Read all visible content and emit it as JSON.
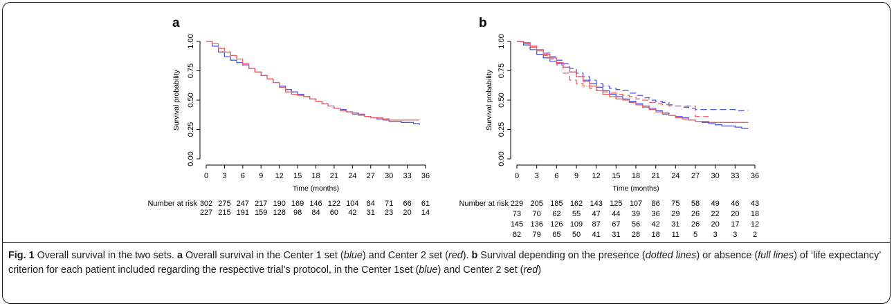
{
  "chart_data": [
    {
      "type": "line",
      "panel": "a",
      "xlabel": "Time (months)",
      "ylabel": "Survival probability",
      "xlim": [
        0,
        36
      ],
      "ylim": [
        0,
        1
      ],
      "x_ticks": [
        "0",
        "3",
        "6",
        "9",
        "12",
        "15",
        "18",
        "21",
        "24",
        "27",
        "30",
        "33",
        "36"
      ],
      "y_ticks": [
        "0.00",
        "0.25",
        "0.50",
        "0.75",
        "1.00"
      ],
      "series": [
        {
          "color": "#4b55e8",
          "style": "solid",
          "x": [
            0,
            1,
            2,
            3,
            4,
            5,
            6,
            7,
            8,
            9,
            10,
            11,
            12,
            13,
            14,
            15,
            16,
            17,
            18,
            19,
            20,
            21,
            22,
            23,
            24,
            25,
            26,
            27,
            28,
            29,
            30,
            31,
            32,
            33,
            34,
            35
          ],
          "y": [
            1.0,
            0.96,
            0.91,
            0.87,
            0.84,
            0.82,
            0.8,
            0.77,
            0.74,
            0.71,
            0.68,
            0.65,
            0.62,
            0.59,
            0.57,
            0.55,
            0.53,
            0.51,
            0.49,
            0.47,
            0.45,
            0.43,
            0.42,
            0.4,
            0.39,
            0.38,
            0.36,
            0.35,
            0.34,
            0.33,
            0.32,
            0.32,
            0.31,
            0.31,
            0.3,
            0.29
          ]
        },
        {
          "color": "#f25b5b",
          "style": "solid",
          "x": [
            0,
            1,
            2,
            3,
            4,
            5,
            6,
            7,
            8,
            9,
            10,
            11,
            12,
            13,
            14,
            15,
            16,
            17,
            18,
            19,
            20,
            21,
            22,
            23,
            24,
            25,
            26,
            27,
            28,
            29,
            30,
            31,
            32,
            33,
            34,
            35
          ],
          "y": [
            1.0,
            0.98,
            0.94,
            0.91,
            0.88,
            0.85,
            0.81,
            0.77,
            0.74,
            0.71,
            0.68,
            0.65,
            0.61,
            0.57,
            0.55,
            0.54,
            0.53,
            0.51,
            0.49,
            0.47,
            0.45,
            0.43,
            0.41,
            0.4,
            0.38,
            0.37,
            0.36,
            0.35,
            0.35,
            0.34,
            0.33,
            0.33,
            0.33,
            0.33,
            0.33,
            0.33
          ]
        }
      ],
      "at_risk_label": "Number at risk",
      "at_risk": [
        [
          "302",
          "275",
          "247",
          "217",
          "190",
          "169",
          "146",
          "122",
          "104",
          "84",
          "71",
          "66",
          "61"
        ],
        [
          "227",
          "215",
          "191",
          "159",
          "128",
          "98",
          "84",
          "60",
          "42",
          "31",
          "23",
          "20",
          "14"
        ]
      ]
    },
    {
      "type": "line",
      "panel": "b",
      "xlabel": "Time (months)",
      "ylabel": "Survival probability",
      "xlim": [
        0,
        36
      ],
      "ylim": [
        0,
        1
      ],
      "x_ticks": [
        "0",
        "3",
        "6",
        "9",
        "12",
        "15",
        "18",
        "21",
        "24",
        "27",
        "30",
        "33",
        "36"
      ],
      "y_ticks": [
        "0.00",
        "0.25",
        "0.50",
        "0.75",
        "1.00"
      ],
      "series": [
        {
          "color": "#4b55e8",
          "style": "solid",
          "x": [
            0,
            1,
            2,
            3,
            4,
            5,
            6,
            7,
            8,
            9,
            10,
            11,
            12,
            13,
            14,
            15,
            16,
            17,
            18,
            19,
            20,
            21,
            22,
            23,
            24,
            25,
            26,
            27,
            28,
            29,
            30,
            31,
            32,
            33,
            34,
            35
          ],
          "y": [
            1.0,
            0.97,
            0.93,
            0.89,
            0.86,
            0.83,
            0.81,
            0.78,
            0.74,
            0.7,
            0.67,
            0.64,
            0.61,
            0.58,
            0.55,
            0.53,
            0.51,
            0.49,
            0.47,
            0.45,
            0.43,
            0.41,
            0.39,
            0.37,
            0.36,
            0.35,
            0.33,
            0.32,
            0.31,
            0.3,
            0.29,
            0.28,
            0.28,
            0.27,
            0.26,
            0.26
          ]
        },
        {
          "color": "#4b55e8",
          "style": "dashed",
          "x": [
            0,
            1,
            2,
            3,
            4,
            5,
            6,
            7,
            8,
            9,
            10,
            11,
            12,
            13,
            14,
            15,
            16,
            17,
            18,
            19,
            20,
            21,
            22,
            23,
            24,
            25,
            26,
            27,
            28,
            29,
            30,
            31,
            32,
            33,
            34,
            35
          ],
          "y": [
            1.0,
            0.98,
            0.96,
            0.93,
            0.9,
            0.87,
            0.84,
            0.81,
            0.77,
            0.73,
            0.7,
            0.67,
            0.64,
            0.62,
            0.6,
            0.59,
            0.58,
            0.56,
            0.54,
            0.52,
            0.5,
            0.49,
            0.48,
            0.46,
            0.45,
            0.44,
            0.43,
            0.42,
            0.42,
            0.42,
            0.42,
            0.42,
            0.42,
            0.41,
            0.41,
            0.41
          ]
        },
        {
          "color": "#f25b5b",
          "style": "solid",
          "x": [
            0,
            1,
            2,
            3,
            4,
            5,
            6,
            7,
            8,
            9,
            10,
            11,
            12,
            13,
            14,
            15,
            16,
            17,
            18,
            19,
            20,
            21,
            22,
            23,
            24,
            25,
            26,
            27,
            28,
            29,
            30,
            31,
            32,
            33,
            34,
            35
          ],
          "y": [
            1.0,
            0.99,
            0.96,
            0.93,
            0.89,
            0.86,
            0.82,
            0.78,
            0.74,
            0.7,
            0.66,
            0.62,
            0.58,
            0.55,
            0.53,
            0.51,
            0.5,
            0.48,
            0.46,
            0.44,
            0.42,
            0.4,
            0.38,
            0.37,
            0.35,
            0.34,
            0.33,
            0.32,
            0.32,
            0.31,
            0.31,
            0.31,
            0.31,
            0.31,
            0.31,
            0.31
          ]
        },
        {
          "color": "#f25b5b",
          "style": "dashed",
          "x": [
            0,
            1,
            2,
            3,
            4,
            5,
            6,
            7,
            8,
            9,
            10,
            11,
            12,
            13,
            14,
            15,
            16,
            17,
            18,
            19,
            20,
            21,
            22,
            23,
            24,
            25,
            26,
            27,
            28,
            29
          ],
          "y": [
            1.0,
            0.98,
            0.95,
            0.92,
            0.88,
            0.85,
            0.8,
            0.73,
            0.67,
            0.64,
            0.62,
            0.6,
            0.58,
            0.57,
            0.56,
            0.55,
            0.54,
            0.53,
            0.51,
            0.5,
            0.48,
            0.47,
            0.46,
            0.45,
            0.45,
            0.45,
            0.45,
            0.36,
            0.36,
            0.36
          ]
        }
      ],
      "at_risk_label": "Number at risk",
      "at_risk": [
        [
          "229",
          "205",
          "185",
          "162",
          "143",
          "125",
          "107",
          "86",
          "75",
          "58",
          "49",
          "46",
          "43"
        ],
        [
          "73",
          "70",
          "62",
          "55",
          "47",
          "44",
          "39",
          "36",
          "29",
          "26",
          "22",
          "20",
          "18"
        ],
        [
          "145",
          "136",
          "126",
          "109",
          "87",
          "67",
          "56",
          "42",
          "31",
          "26",
          "20",
          "17",
          "12"
        ],
        [
          "82",
          "79",
          "65",
          "50",
          "41",
          "31",
          "28",
          "18",
          "11",
          "5",
          "3",
          "3",
          "2"
        ]
      ]
    }
  ],
  "caption": {
    "fig_label": "Fig. 1",
    "p1": " Overall survival in the two sets. ",
    "a": "a",
    "p2": " Overall survival in the Center 1 set (",
    "blue1": "blue",
    "p3": ") and Center 2 set (",
    "red1": "red",
    "p4": "). ",
    "b": "b",
    "p5": " Survival depending on the presence (",
    "dotted": "dotted lines",
    "p6": ") or absence (",
    "full": "full lines",
    "p7": ") of ‘life expectancy’ criterion for each patient included regarding the respective trial’s protocol, in the Center 1set (",
    "blue2": "blue",
    "p8": ") and Center 2 set (",
    "red2": "red",
    "p9": ")"
  }
}
